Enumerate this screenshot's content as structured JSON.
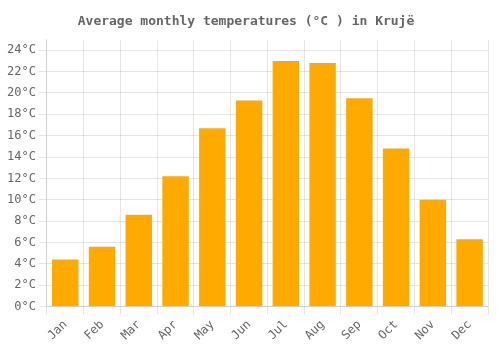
{
  "chart_data": {
    "type": "bar",
    "title": "Average monthly temperatures (°C ) in Krujë",
    "categories": [
      "Jan",
      "Feb",
      "Mar",
      "Apr",
      "May",
      "Jun",
      "Jul",
      "Aug",
      "Sep",
      "Oct",
      "Nov",
      "Dec"
    ],
    "values": [
      4.4,
      5.6,
      8.6,
      12.2,
      16.7,
      19.3,
      23.0,
      22.8,
      19.5,
      14.8,
      10.0,
      6.3
    ],
    "color": "#FFAA00",
    "ylim": [
      0,
      25
    ],
    "yticks": [
      {
        "value": 0,
        "label": "0°C"
      },
      {
        "value": 2,
        "label": "2°C"
      },
      {
        "value": 4,
        "label": "4°C"
      },
      {
        "value": 6,
        "label": "6°C"
      },
      {
        "value": 8,
        "label": "8°C"
      },
      {
        "value": 10,
        "label": "10°C"
      },
      {
        "value": 12,
        "label": "12°C"
      },
      {
        "value": 14,
        "label": "14°C"
      },
      {
        "value": 16,
        "label": "16°C"
      },
      {
        "value": 18,
        "label": "18°C"
      },
      {
        "value": 20,
        "label": "20°C"
      },
      {
        "value": 22,
        "label": "22°C"
      },
      {
        "value": 24,
        "label": "24°C"
      }
    ],
    "grid": true
  }
}
